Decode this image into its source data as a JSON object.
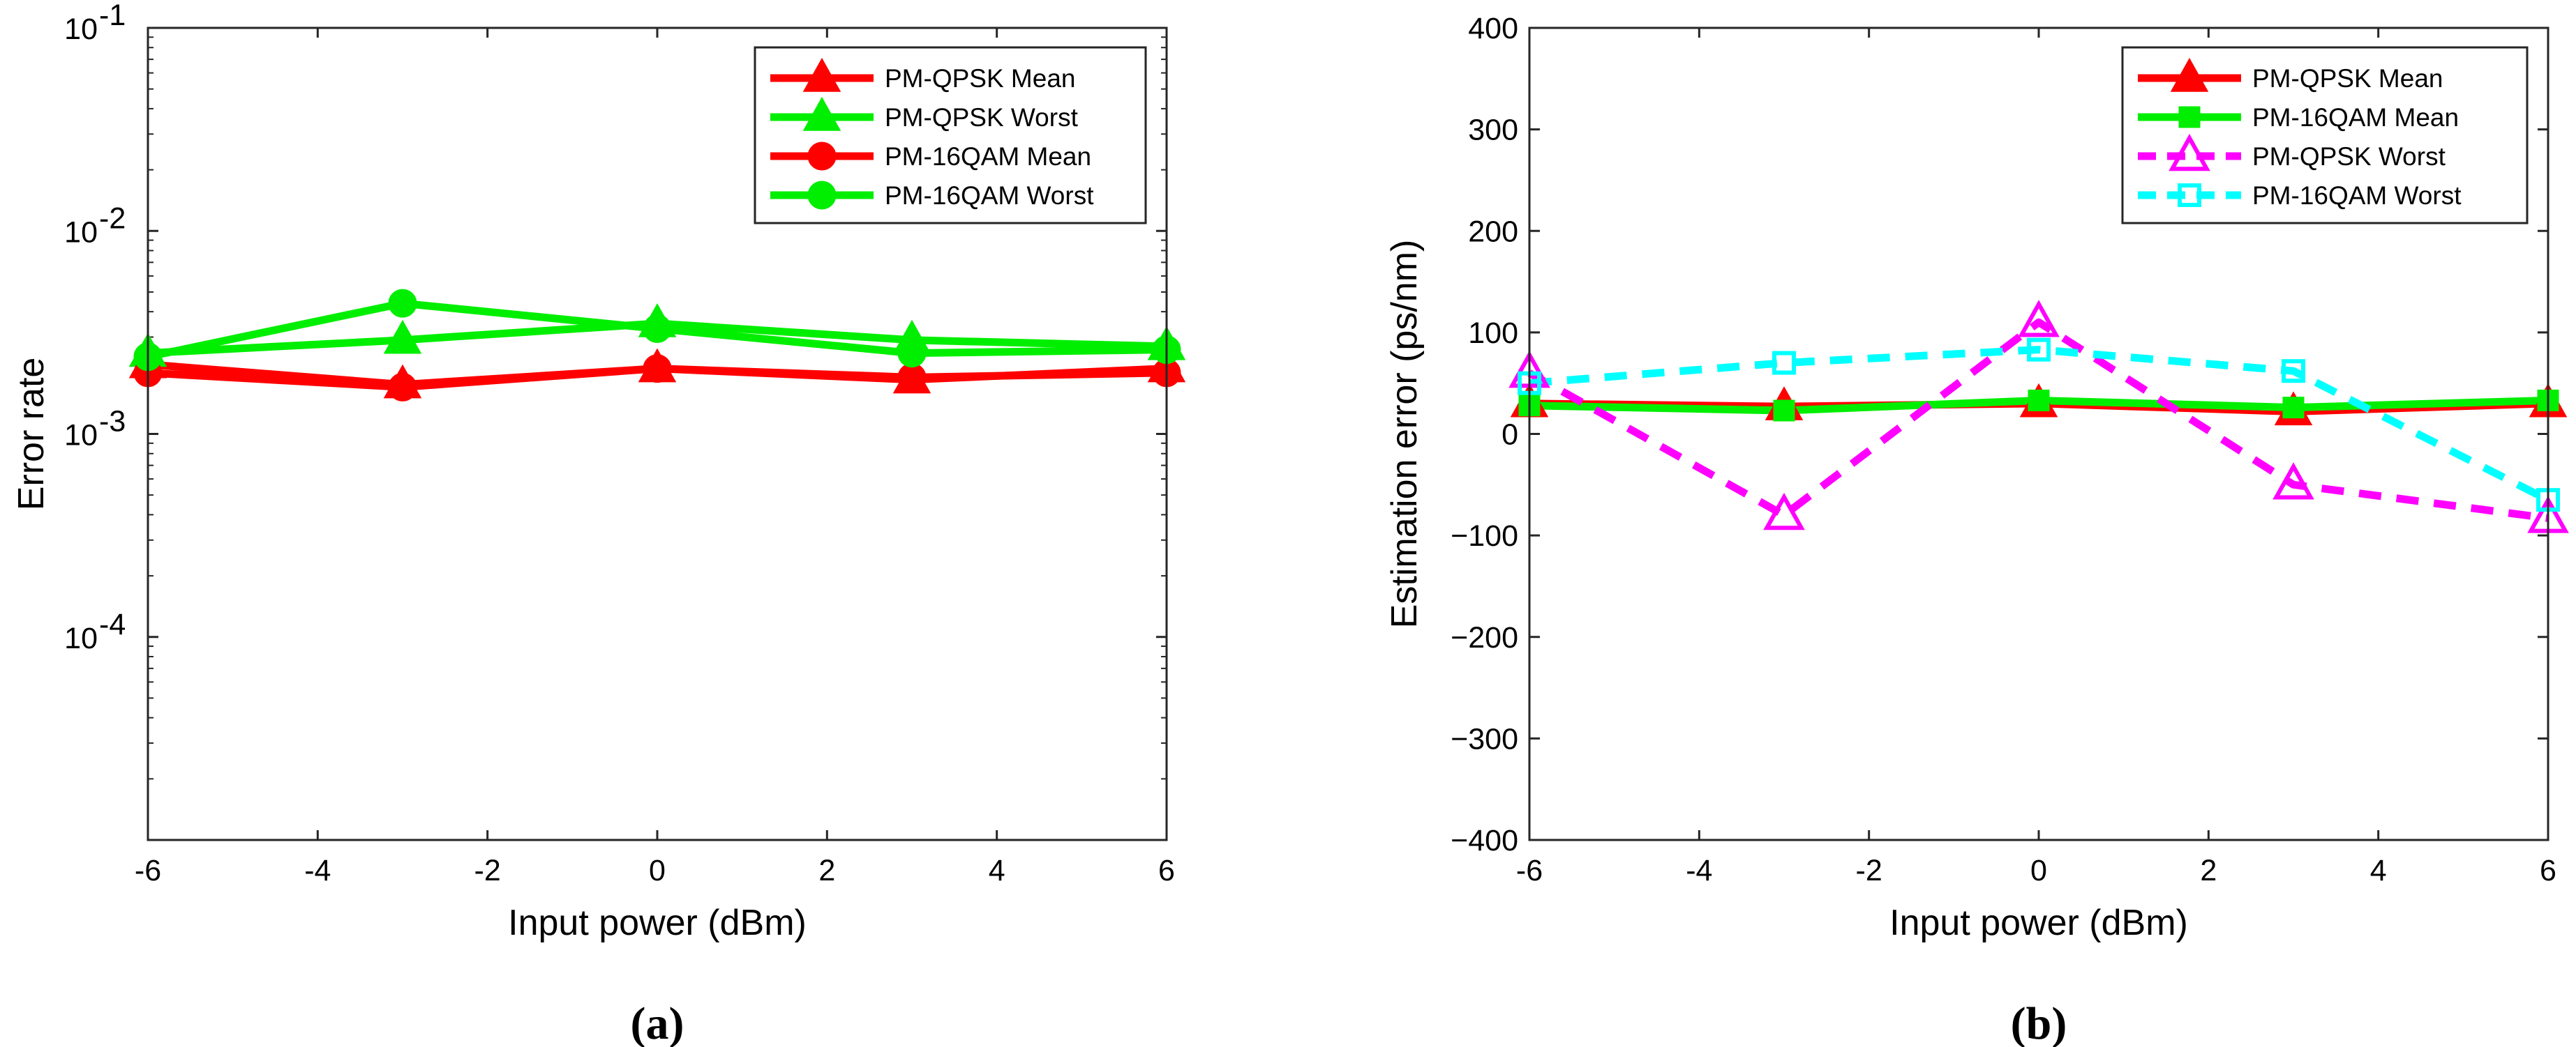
{
  "chart_data": [
    {
      "type": "line",
      "panel_label": "(a)",
      "xlabel": "Input power (dBm)",
      "ylabel": "Error rate",
      "yscale": "log",
      "xlim": [
        -6,
        6
      ],
      "ylim": [
        1e-05,
        0.1
      ],
      "x_ticks": [
        "-6",
        "-4",
        "-2",
        "0",
        "2",
        "4",
        "6"
      ],
      "y_ticks": [
        {
          "base": "10",
          "exp": "-4"
        },
        {
          "base": "10",
          "exp": "-3"
        },
        {
          "base": "10",
          "exp": "-2"
        },
        {
          "base": "10",
          "exp": "-1"
        }
      ],
      "legend_position": "top-right",
      "x": [
        -6,
        -3,
        0,
        3,
        6
      ],
      "series": [
        {
          "name": "PM-QPSK Mean",
          "color": "#ff0000",
          "marker": "triangle",
          "dash": "solid",
          "filled": true,
          "values": [
            0.0022,
            0.00175,
            0.0021,
            0.00185,
            0.0021
          ]
        },
        {
          "name": "PM-QPSK Worst",
          "color": "#00ee00",
          "marker": "triangle",
          "dash": "solid",
          "filled": true,
          "values": [
            0.0025,
            0.0029,
            0.0035,
            0.0029,
            0.0027
          ]
        },
        {
          "name": "PM-16QAM Mean",
          "color": "#ff0000",
          "marker": "circle",
          "dash": "solid",
          "filled": true,
          "values": [
            0.002,
            0.0017,
            0.0021,
            0.0019,
            0.002
          ]
        },
        {
          "name": "PM-16QAM Worst",
          "color": "#00ee00",
          "marker": "circle",
          "dash": "solid",
          "filled": true,
          "values": [
            0.0024,
            0.0044,
            0.0033,
            0.0025,
            0.0026
          ]
        }
      ]
    },
    {
      "type": "line",
      "panel_label": "(b)",
      "xlabel": "Input power (dBm)",
      "ylabel": "Estimation error (ps/nm)",
      "yscale": "linear",
      "xlim": [
        -6,
        6
      ],
      "ylim": [
        -400,
        400
      ],
      "x_ticks": [
        "-6",
        "-4",
        "-2",
        "0",
        "2",
        "4",
        "6"
      ],
      "y_ticks": [
        "400",
        "300",
        "200",
        "100",
        "0",
        "-100",
        "-200",
        "-300",
        "-400"
      ],
      "legend_position": "top-right",
      "x": [
        -6,
        -3,
        0,
        3,
        6
      ],
      "series": [
        {
          "name": "PM-QPSK Mean",
          "color": "#ff0000",
          "marker": "triangle",
          "dash": "solid",
          "filled": true,
          "values": [
            30,
            27,
            30,
            22,
            30
          ]
        },
        {
          "name": "PM-16QAM Mean",
          "color": "#00ee00",
          "marker": "square",
          "dash": "solid",
          "filled": true,
          "values": [
            28,
            23,
            33,
            26,
            33
          ]
        },
        {
          "name": "PM-QPSK Worst",
          "color": "#ff00ff",
          "marker": "triangle",
          "dash": "dashed",
          "filled": false,
          "values": [
            60,
            -80,
            110,
            -50,
            -83
          ]
        },
        {
          "name": "PM-16QAM Worst",
          "color": "#00ffff",
          "marker": "square",
          "dash": "dashed",
          "filled": false,
          "values": [
            50,
            70,
            83,
            62,
            -65
          ]
        }
      ]
    }
  ]
}
